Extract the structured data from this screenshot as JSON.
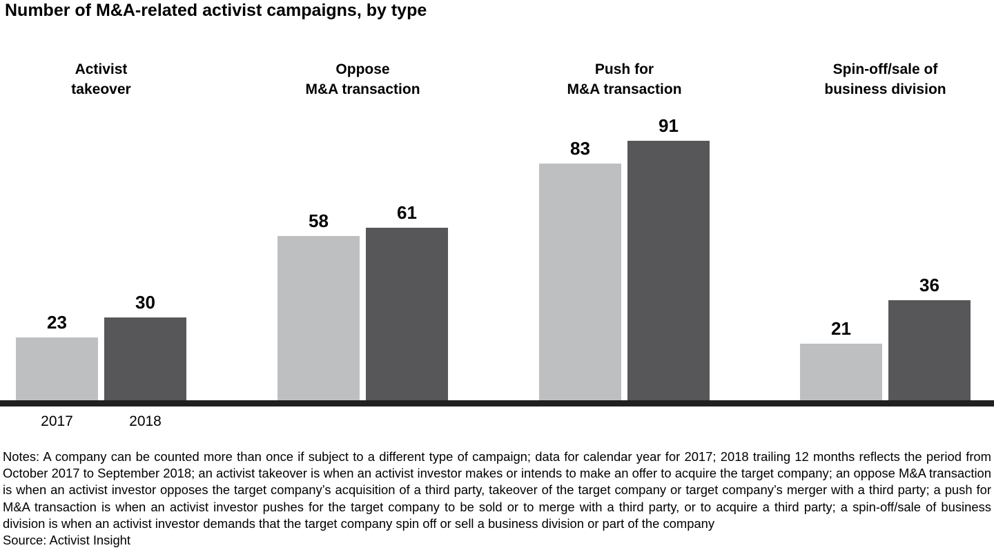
{
  "chart_data": {
    "type": "bar",
    "title": "Number of M&A-related activist campaigns, by type",
    "categories": [
      "Activist takeover",
      "Oppose M&A transaction",
      "Push for M&A transaction",
      "Spin-off/sale of business division"
    ],
    "categories_display": [
      "Activist\ntakeover",
      "Oppose\nM&A transaction",
      "Push for\nM&A transaction",
      "Spin-off/sale of\nbusiness division"
    ],
    "series": [
      {
        "name": "2017",
        "color": "#bdbfc1",
        "values": [
          23,
          58,
          83,
          21
        ]
      },
      {
        "name": "2018",
        "color": "#57575a",
        "values": [
          30,
          61,
          91,
          36
        ]
      }
    ],
    "ylim": [
      0,
      95
    ],
    "grid": false,
    "legend_position": "year labels below first group only",
    "axis_color": "#202022"
  },
  "notes": "Notes: A company can be counted more than once if subject to a different type of campaign; data for calendar year for 2017; 2018 trailing 12 months reflects the period from October 2017 to September 2018; an activist takeover is when an activist investor makes or intends to make an offer to acquire the target company; an oppose M&A transaction is when an activist investor opposes the target company’s acquisition of a third party, takeover of the target company or target company’s merger with a third party; a push for M&A transaction is when an activist investor pushes for the target company to be sold or to merge with a third party, or to acquire a third party; a spin-off/sale of business division is when an activist investor demands that the target company spin off or sell a business division or part of the company",
  "source": "Source: Activist Insight"
}
